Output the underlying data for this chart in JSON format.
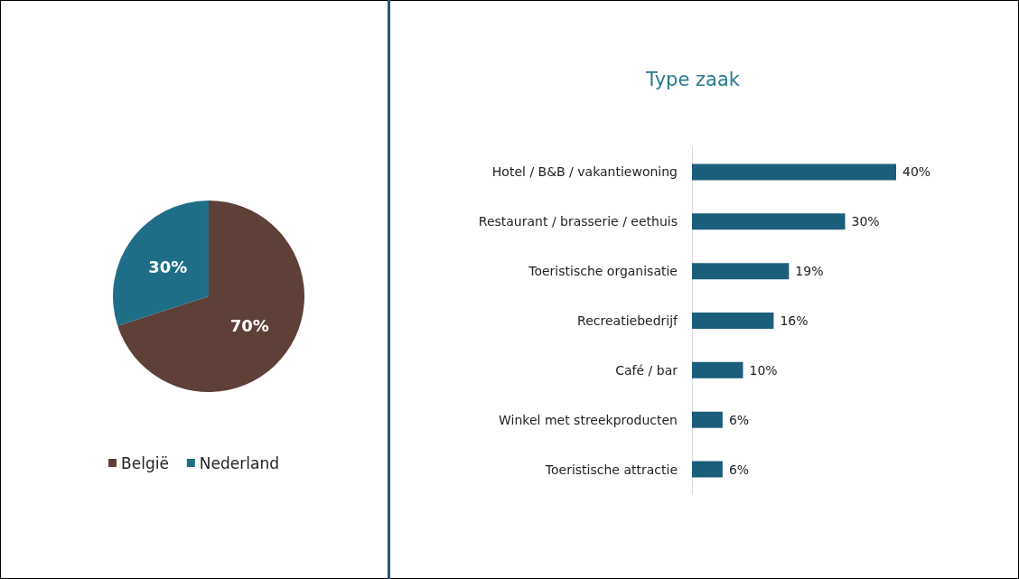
{
  "chart_data": [
    {
      "type": "pie",
      "categories": [
        "België",
        "Nederland"
      ],
      "values": [
        70,
        30
      ],
      "colors": [
        "#5e4038",
        "#1f6e87"
      ],
      "value_labels": [
        "70%",
        "30%"
      ],
      "legend": "bottom"
    },
    {
      "type": "bar",
      "orientation": "horizontal",
      "title": "Type zaak",
      "categories": [
        "Hotel / B&B / vakantiewoning",
        "Restaurant / brasserie / eethuis",
        "Toeristische organisatie",
        "Recreatiebedrijf",
        "Café / bar",
        "Winkel met streekproducten",
        "Toeristische attractie"
      ],
      "values": [
        40,
        30,
        19,
        16,
        10,
        6,
        6
      ],
      "color": "#1b5e7b",
      "value_labels": [
        "40%",
        "30%",
        "19%",
        "16%",
        "10%",
        "6%",
        "6%"
      ]
    }
  ]
}
